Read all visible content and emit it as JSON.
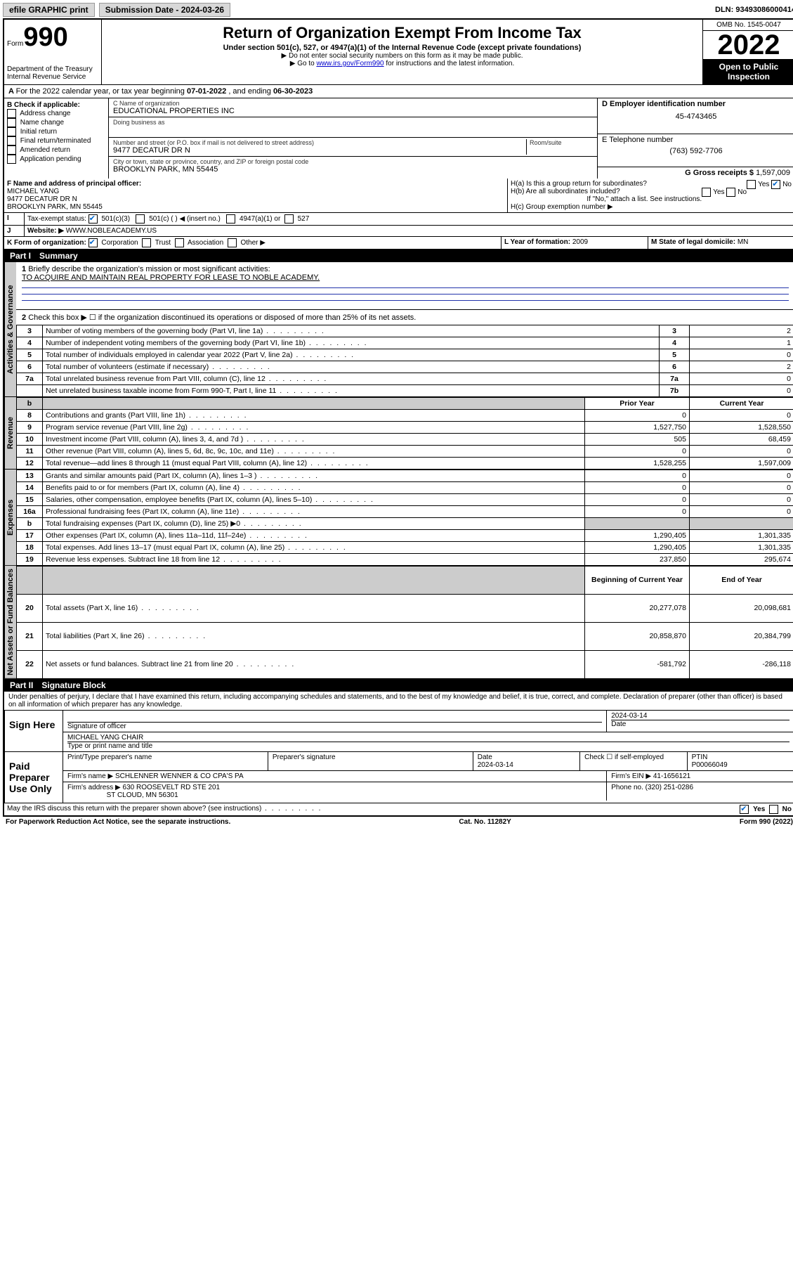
{
  "top": {
    "efile": "efile GRAPHIC print",
    "subdate_label": "Submission Date - ",
    "subdate": "2024-03-26",
    "dln_label": "DLN: ",
    "dln": "93493086000414"
  },
  "header": {
    "form_label": "Form",
    "form_no": "990",
    "dept": "Department of the Treasury\nInternal Revenue Service",
    "title": "Return of Organization Exempt From Income Tax",
    "sub1": "Under section 501(c), 527, or 4947(a)(1) of the Internal Revenue Code (except private foundations)",
    "sub2": "▶ Do not enter social security numbers on this form as it may be made public.",
    "sub3_pre": "▶ Go to ",
    "sub3_link": "www.irs.gov/Form990",
    "sub3_post": " for instructions and the latest information.",
    "omb": "OMB No. 1545-0047",
    "year": "2022",
    "open": "Open to Public Inspection"
  },
  "a": {
    "text_pre": "For the 2022 calendar year, or tax year beginning ",
    "begin": "07-01-2022",
    "mid": " , and ending ",
    "end": "06-30-2023"
  },
  "b": {
    "label": "B Check if applicable:",
    "opts": [
      "Address change",
      "Name change",
      "Initial return",
      "Final return/terminated",
      "Amended return",
      "Application pending"
    ]
  },
  "c": {
    "name_label": "C Name of organization",
    "name": "EDUCATIONAL PROPERTIES INC",
    "dba_label": "Doing business as",
    "addr_label": "Number and street (or P.O. box if mail is not delivered to street address)",
    "room_label": "Room/suite",
    "addr": "9477 DECATUR DR N",
    "city_label": "City or town, state or province, country, and ZIP or foreign postal code",
    "city": "BROOKLYN PARK, MN  55445"
  },
  "d": {
    "label": "D Employer identification number",
    "val": "45-4743465"
  },
  "e": {
    "label": "E Telephone number",
    "val": "(763) 592-7706"
  },
  "g": {
    "label": "G Gross receipts $ ",
    "val": "1,597,009"
  },
  "f": {
    "label": "F Name and address of principal officer:",
    "name": "MICHAEL YANG",
    "addr1": "9477 DECATUR DR N",
    "addr2": "BROOKLYN PARK, MN  55445"
  },
  "h": {
    "a": "H(a)  Is this a group return for subordinates?",
    "a_yes": "Yes",
    "a_no_checked": "No",
    "b": "H(b)  Are all subordinates included?",
    "b_yes": "Yes",
    "b_no": "No",
    "note": "If \"No,\" attach a list. See instructions.",
    "c": "H(c)  Group exemption number ▶"
  },
  "i": {
    "label": "Tax-exempt status:",
    "o1": "501(c)(3)",
    "o2": "501(c) (  ) ◀ (insert no.)",
    "o3": "4947(a)(1) or",
    "o4": "527"
  },
  "j": {
    "label": "Website: ▶",
    "val": "WWW.NOBLEACADEMY.US"
  },
  "k": {
    "label": "K Form of organization:",
    "o1": "Corporation",
    "o2": "Trust",
    "o3": "Association",
    "o4": "Other ▶"
  },
  "l": {
    "label": "L Year of formation: ",
    "val": "2009"
  },
  "m": {
    "label": "M State of legal domicile: ",
    "val": "MN"
  },
  "part1": {
    "label": "Part I",
    "title": "Summary"
  },
  "summary": {
    "q1": "Briefly describe the organization's mission or most significant activities:",
    "q1ans": "TO ACQUIRE AND MAINTAIN REAL PROPERTY FOR LEASE TO NOBLE ACADEMY.",
    "q2": "Check this box ▶ ☐  if the organization discontinued its operations or disposed of more than 25% of its net assets.",
    "rows_gov": [
      {
        "n": "3",
        "d": "Number of voting members of the governing body (Part VI, line 1a)",
        "l": "3",
        "v": "2"
      },
      {
        "n": "4",
        "d": "Number of independent voting members of the governing body (Part VI, line 1b)",
        "l": "4",
        "v": "1"
      },
      {
        "n": "5",
        "d": "Total number of individuals employed in calendar year 2022 (Part V, line 2a)",
        "l": "5",
        "v": "0"
      },
      {
        "n": "6",
        "d": "Total number of volunteers (estimate if necessary)",
        "l": "6",
        "v": "2"
      },
      {
        "n": "7a",
        "d": "Total unrelated business revenue from Part VIII, column (C), line 12",
        "l": "7a",
        "v": "0"
      },
      {
        "n": "",
        "d": "Net unrelated business taxable income from Form 990-T, Part I, line 11",
        "l": "7b",
        "v": "0"
      }
    ],
    "col_prior": "Prior Year",
    "col_curr": "Current Year",
    "rows_rev": [
      {
        "n": "8",
        "d": "Contributions and grants (Part VIII, line 1h)",
        "p": "0",
        "c": "0"
      },
      {
        "n": "9",
        "d": "Program service revenue (Part VIII, line 2g)",
        "p": "1,527,750",
        "c": "1,528,550"
      },
      {
        "n": "10",
        "d": "Investment income (Part VIII, column (A), lines 3, 4, and 7d )",
        "p": "505",
        "c": "68,459"
      },
      {
        "n": "11",
        "d": "Other revenue (Part VIII, column (A), lines 5, 6d, 8c, 9c, 10c, and 11e)",
        "p": "0",
        "c": "0"
      },
      {
        "n": "12",
        "d": "Total revenue—add lines 8 through 11 (must equal Part VIII, column (A), line 12)",
        "p": "1,528,255",
        "c": "1,597,009"
      }
    ],
    "rows_exp": [
      {
        "n": "13",
        "d": "Grants and similar amounts paid (Part IX, column (A), lines 1–3 )",
        "p": "0",
        "c": "0"
      },
      {
        "n": "14",
        "d": "Benefits paid to or for members (Part IX, column (A), line 4)",
        "p": "0",
        "c": "0"
      },
      {
        "n": "15",
        "d": "Salaries, other compensation, employee benefits (Part IX, column (A), lines 5–10)",
        "p": "0",
        "c": "0"
      },
      {
        "n": "16a",
        "d": "Professional fundraising fees (Part IX, column (A), line 11e)",
        "p": "0",
        "c": "0"
      },
      {
        "n": "b",
        "d": "Total fundraising expenses (Part IX, column (D), line 25) ▶0",
        "p": "",
        "c": "",
        "gray": true
      },
      {
        "n": "17",
        "d": "Other expenses (Part IX, column (A), lines 11a–11d, 11f–24e)",
        "p": "1,290,405",
        "c": "1,301,335"
      },
      {
        "n": "18",
        "d": "Total expenses. Add lines 13–17 (must equal Part IX, column (A), line 25)",
        "p": "1,290,405",
        "c": "1,301,335"
      },
      {
        "n": "19",
        "d": "Revenue less expenses. Subtract line 18 from line 12",
        "p": "237,850",
        "c": "295,674"
      }
    ],
    "col_beg": "Beginning of Current Year",
    "col_end": "End of Year",
    "rows_net": [
      {
        "n": "20",
        "d": "Total assets (Part X, line 16)",
        "p": "20,277,078",
        "c": "20,098,681"
      },
      {
        "n": "21",
        "d": "Total liabilities (Part X, line 26)",
        "p": "20,858,870",
        "c": "20,384,799"
      },
      {
        "n": "22",
        "d": "Net assets or fund balances. Subtract line 21 from line 20",
        "p": "-581,792",
        "c": "-286,118"
      }
    ],
    "tabs": {
      "gov": "Activities & Governance",
      "rev": "Revenue",
      "exp": "Expenses",
      "net": "Net Assets or Fund Balances"
    }
  },
  "part2": {
    "label": "Part II",
    "title": "Signature Block"
  },
  "sig": {
    "decl": "Under penalties of perjury, I declare that I have examined this return, including accompanying schedules and statements, and to the best of my knowledge and belief, it is true, correct, and complete. Declaration of preparer (other than officer) is based on all information of which preparer has any knowledge.",
    "sign_here": "Sign Here",
    "sig_officer": "Signature of officer",
    "date": "2024-03-14",
    "date_lbl": "Date",
    "name": "MICHAEL YANG CHAIR",
    "name_lbl": "Type or print name and title",
    "paid": "Paid Preparer Use Only",
    "prep_name_lbl": "Print/Type preparer's name",
    "prep_sig_lbl": "Preparer's signature",
    "prep_date": "2024-03-14",
    "chk_lbl": "Check ☐ if self-employed",
    "ptin_lbl": "PTIN",
    "ptin": "P00066049",
    "firm_name_lbl": "Firm's name   ▶",
    "firm_name": "SCHLENNER WENNER & CO CPA'S PA",
    "firm_ein_lbl": "Firm's EIN ▶",
    "firm_ein": "41-1656121",
    "firm_addr_lbl": "Firm's address ▶",
    "firm_addr1": "630 ROOSEVELT RD STE 201",
    "firm_addr2": "ST CLOUD, MN  56301",
    "phone_lbl": "Phone no. ",
    "phone": "(320) 251-0286",
    "may": "May the IRS discuss this return with the preparer shown above? (see instructions)",
    "may_yes": "Yes",
    "may_no": "No"
  },
  "footer": {
    "left": "For Paperwork Reduction Act Notice, see the separate instructions.",
    "mid": "Cat. No. 11282Y",
    "right": "Form 990 (2022)"
  }
}
